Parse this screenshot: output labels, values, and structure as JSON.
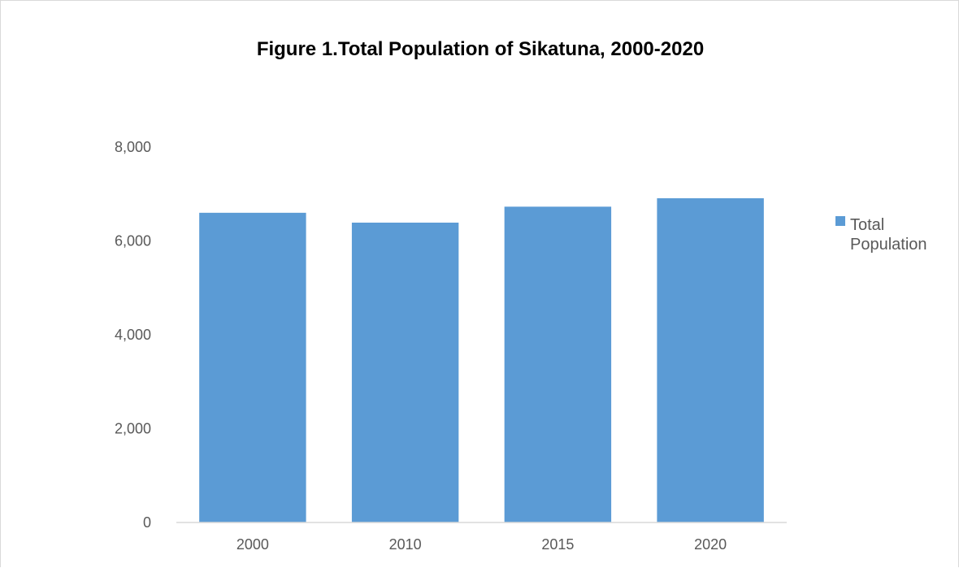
{
  "chart_data": {
    "type": "bar",
    "title": "Figure 1.Total Population of Sikatuna, 2000-2020",
    "xlabel": "",
    "ylabel": "",
    "categories": [
      "2000",
      "2010",
      "2015",
      "2020"
    ],
    "series": [
      {
        "name": "Total Population",
        "values": [
          6600,
          6390,
          6730,
          6910
        ],
        "color": "#5b9bd5"
      }
    ],
    "ylim": [
      0,
      8000
    ],
    "yticks": [
      0,
      2000,
      4000,
      6000,
      8000
    ],
    "ytick_labels": [
      "0",
      "2,000",
      "4,000",
      "6,000",
      "8,000"
    ],
    "legend": {
      "position": "right",
      "label_lines": [
        "Total",
        "Population"
      ]
    },
    "grid": false
  }
}
